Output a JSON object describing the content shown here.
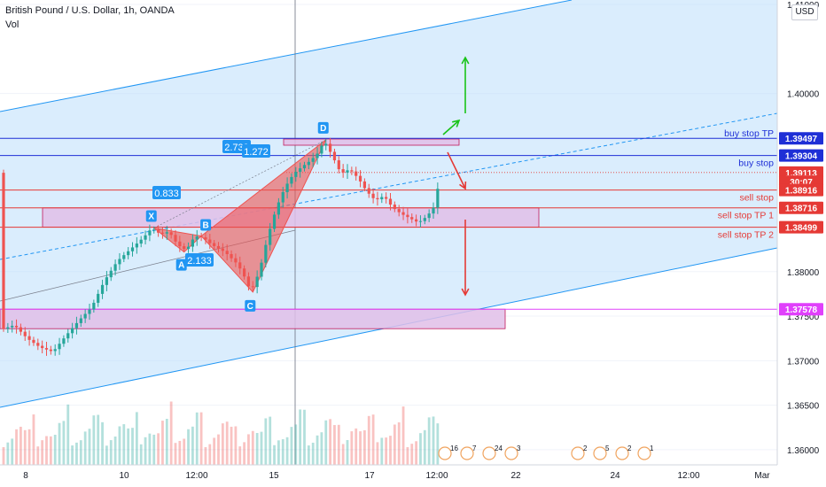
{
  "header": {
    "title": "British Pound / U.S. Dollar, 1h, OANDA",
    "indicator": "Vol",
    "currency_button": "USD"
  },
  "colors": {
    "up": "#26a69a",
    "down": "#ef5350",
    "channel": "#2196f3",
    "channel_fill": "#bbdefb",
    "blue_line": "#1e2fd6",
    "red_line": "#e53935",
    "harmonic_fill": "#ef5350",
    "harmonic_point": "#2196f3",
    "zone_fill": "#e1bee7",
    "zone_border": "#c2185b",
    "green_arrow": "#19c319",
    "red_arrow": "#e53935",
    "axis_text": "#131722",
    "grid": "#f0f3fa",
    "magenta": "#e040fb"
  },
  "chart_data": {
    "type": "candlestick",
    "symbol": "GBPUSD",
    "timeframe": "1h",
    "ylim": [
      1.3583,
      1.4105
    ],
    "y_ticks": [
      "1.41000",
      "1.40000",
      "1.39500",
      "1.38500",
      "1.38000",
      "1.37500",
      "1.37000",
      "1.36500",
      "1.36000"
    ],
    "x_ticks": [
      "8",
      "10",
      "12:00",
      "15",
      "17",
      "12:00",
      "22",
      "24",
      "12:00",
      "Mar"
    ],
    "price_path": [
      [
        0,
        1.3735
      ],
      [
        3,
        1.374
      ],
      [
        6,
        1.3725
      ],
      [
        9,
        1.3715
      ],
      [
        12,
        1.371
      ],
      [
        15,
        1.3728
      ],
      [
        18,
        1.3745
      ],
      [
        21,
        1.376
      ],
      [
        24,
        1.379
      ],
      [
        27,
        1.3812
      ],
      [
        30,
        1.3825
      ],
      [
        33,
        1.3838
      ],
      [
        35,
        1.3849
      ],
      [
        37,
        1.3842
      ],
      [
        39,
        1.3845
      ],
      [
        41,
        1.383
      ],
      [
        43,
        1.3824
      ],
      [
        45,
        1.384
      ],
      [
        47,
        1.3838
      ],
      [
        49,
        1.383
      ],
      [
        52,
        1.3822
      ],
      [
        55,
        1.3808
      ],
      [
        57,
        1.379
      ],
      [
        58,
        1.3777
      ],
      [
        60,
        1.38
      ],
      [
        62,
        1.384
      ],
      [
        64,
        1.3872
      ],
      [
        66,
        1.3895
      ],
      [
        68,
        1.391
      ],
      [
        70,
        1.3918
      ],
      [
        72,
        1.3925
      ],
      [
        74,
        1.3935
      ],
      [
        75,
        1.3948
      ],
      [
        77,
        1.393
      ],
      [
        79,
        1.391
      ],
      [
        81,
        1.3915
      ],
      [
        83,
        1.3905
      ],
      [
        85,
        1.389
      ],
      [
        87,
        1.388
      ],
      [
        89,
        1.3885
      ],
      [
        91,
        1.3872
      ],
      [
        93,
        1.3865
      ],
      [
        95,
        1.386
      ],
      [
        97,
        1.3855
      ],
      [
        99,
        1.3862
      ],
      [
        101,
        1.3875
      ],
      [
        102,
        1.3911
      ]
    ],
    "candle_count": 102,
    "volume_levels": [
      0.35,
      0.55,
      0.5,
      0.7,
      0.6,
      0.4
    ],
    "price_labels": [
      {
        "text": "1.39497",
        "price": 1.39497,
        "kind": "blue"
      },
      {
        "text": "1.39304",
        "price": 1.39304,
        "kind": "blue"
      },
      {
        "text": "1.39113",
        "price": 1.39113,
        "kind": "red"
      },
      {
        "text": "30:07",
        "price": 1.3901,
        "kind": "red"
      },
      {
        "text": "1.38916",
        "price": 1.38916,
        "kind": "red"
      },
      {
        "text": "1.38716",
        "price": 1.38716,
        "kind": "red"
      },
      {
        "text": "1.38499",
        "price": 1.38499,
        "kind": "red"
      },
      {
        "text": "1.37578",
        "price": 1.37578,
        "kind": "magenta"
      }
    ],
    "level_lines": [
      {
        "label": "buy stop TP",
        "price": 1.39497,
        "color": "blue"
      },
      {
        "label": "buy stop",
        "price": 1.39304,
        "color": "blue"
      },
      {
        "label": "sell stop",
        "price": 1.38916,
        "color": "red"
      },
      {
        "label": "sell stop TP 1",
        "price": 1.38716,
        "color": "red"
      },
      {
        "label": "sell stop TP 2",
        "price": 1.38499,
        "color": "red"
      },
      {
        "label": "",
        "price": 1.37578,
        "color": "magenta"
      }
    ],
    "harmonic": {
      "points": [
        {
          "name": "X",
          "index": 35,
          "price": 1.3849
        },
        {
          "name": "A",
          "index": 42,
          "price": 1.3822
        },
        {
          "name": "B",
          "index": 46,
          "price": 1.384
        },
        {
          "name": "C",
          "index": 58,
          "price": 1.3777
        },
        {
          "name": "D",
          "index": 75,
          "price": 1.3948
        }
      ],
      "ratios": [
        "0.833",
        "2.133",
        "2.739",
        "1.272"
      ]
    },
    "events": [
      "16",
      "7",
      "24",
      "3",
      "2",
      "5",
      "2",
      "1"
    ]
  }
}
